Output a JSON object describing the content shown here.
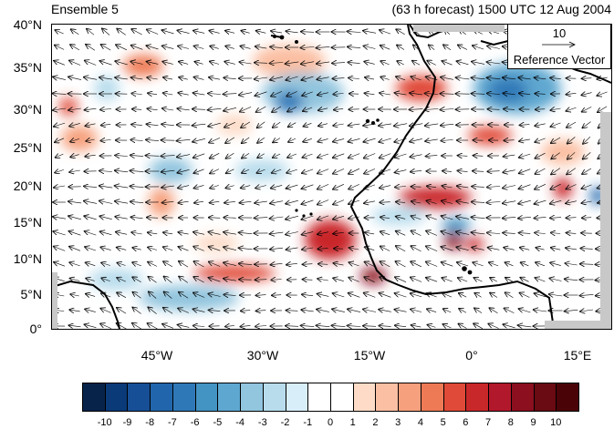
{
  "header": {
    "left_title": "Ensemble 5",
    "right_title": "(63 h forecast) 1500 UTC 12 Aug 2004"
  },
  "map": {
    "lat_labels": [
      "40°N",
      "35°N",
      "30°N",
      "25°N",
      "20°N",
      "15°N",
      "10°N",
      "5°N",
      "0°"
    ],
    "lon_labels": [
      "45°W",
      "30°W",
      "15°W",
      "0°",
      "15°E"
    ],
    "coastline_color": "#000000",
    "missing_color": "#c8c8c8",
    "vector_color": "#000000"
  },
  "reference_vector": {
    "magnitude": "10",
    "label": "Reference Vector"
  },
  "colorbar": {
    "labels": [
      "-10",
      "-9",
      "-8",
      "-7",
      "-6",
      "-5",
      "-4",
      "-3",
      "-2",
      "-1",
      "0",
      "1",
      "2",
      "3",
      "4",
      "5",
      "6",
      "7",
      "8",
      "9",
      "10"
    ],
    "colors": [
      "#08234a",
      "#0a3a78",
      "#174f96",
      "#2166ac",
      "#2f78b8",
      "#4393c3",
      "#5ea7d0",
      "#92c5de",
      "#b8dcec",
      "#d8eef8",
      "#ffffff",
      "#ffffff",
      "#fddbc7",
      "#fbbfa3",
      "#f6a07d",
      "#ee7a55",
      "#e04a38",
      "#c9282a",
      "#b2182b",
      "#8b0f1e",
      "#6a0a12",
      "#4a0408"
    ]
  }
}
